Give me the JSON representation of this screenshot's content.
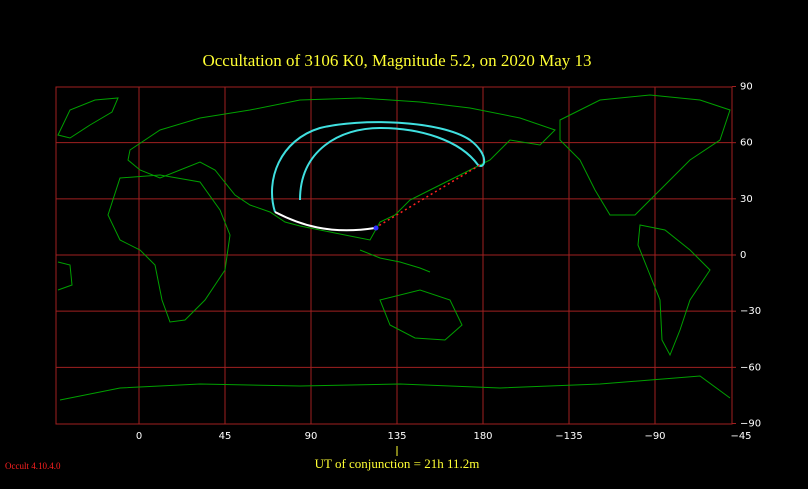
{
  "map": {
    "title": "Occultation  of  3106 K0,       Magnitude 5.2,   on  2020 May 13",
    "lon_ticks": [
      0,
      45,
      90,
      135,
      180,
      {
        "value": -135,
        "label": "−135"
      },
      {
        "value": -90,
        "label": "−90"
      },
      {
        "value": -45,
        "label": "−45"
      }
    ],
    "lat_ticks": [
      90,
      60,
      30,
      0,
      {
        "value": -30,
        "label": "−30"
      },
      {
        "value": -60,
        "label": "−60"
      },
      {
        "value": -90,
        "label": "−90"
      }
    ],
    "conjunction_label": "UT of conjunction = 21h 11.2m",
    "version": "Occult 4.10.4.0"
  }
}
